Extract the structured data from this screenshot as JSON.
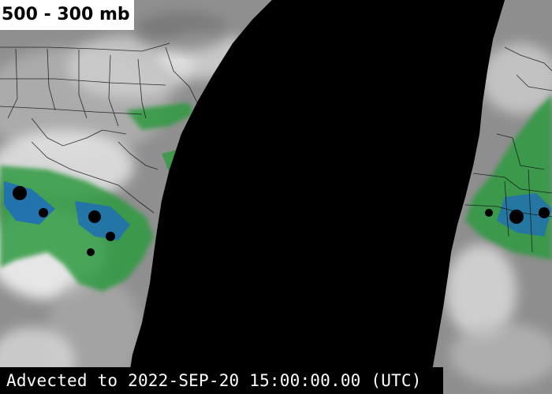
{
  "product": {
    "layer_label": "500 - 300 mb",
    "timestamp_label": "Advected to 2022-SEP-20 15:00:00.00 (UTC)"
  },
  "legend_colors": {
    "background_space": "#000000",
    "dry_air": "#9a9a9a",
    "moist_air": "#e8e8e8",
    "moderate_moisture": "#3aa34a",
    "high_moisture": "#1f6fb6",
    "very_high_moisture": "#000000",
    "borders": "#000000"
  }
}
